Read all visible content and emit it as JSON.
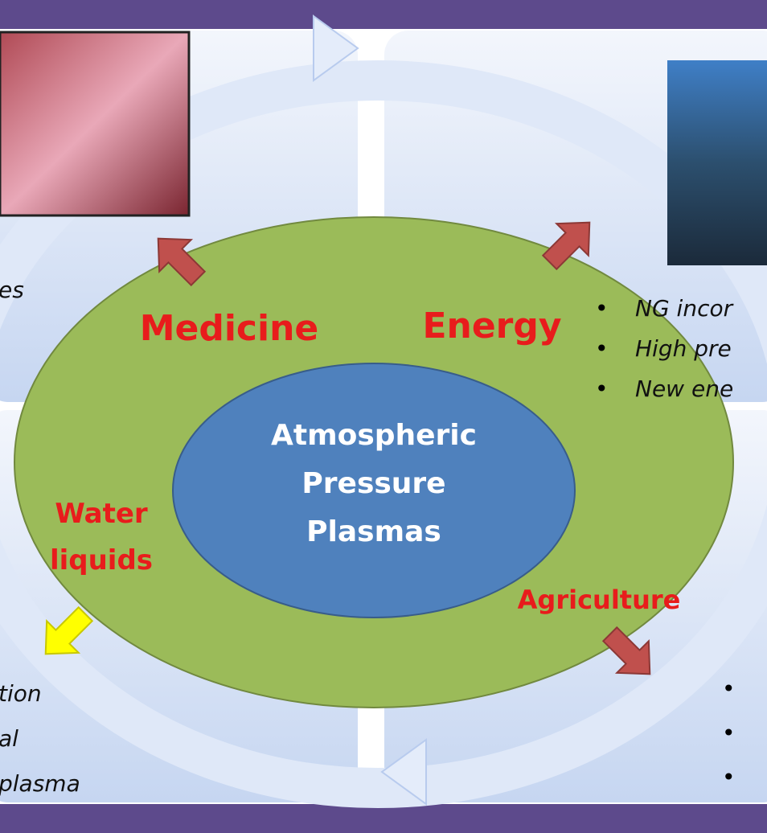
{
  "medicine": {
    "label": "Medicine",
    "text": [
      "es"
    ]
  },
  "energy": {
    "label": "Energy",
    "bullets": [
      "NG incor",
      "High pre",
      "New ene"
    ]
  },
  "center": {
    "lines": [
      "Atmospheric",
      "Pressure",
      "Plasmas"
    ]
  },
  "water": {
    "label": [
      "Water",
      "liquids"
    ],
    "text": [
      "tion",
      "al",
      "plasma"
    ]
  },
  "agriculture": {
    "label": "Agriculture"
  }
}
